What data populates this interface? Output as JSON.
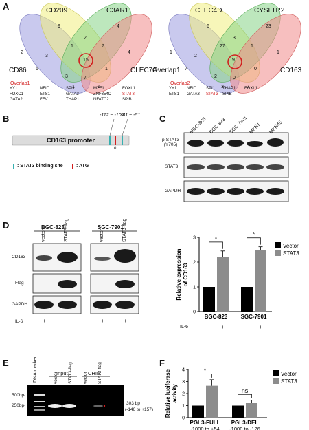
{
  "panels": {
    "A": {
      "label": "A",
      "venn1": {
        "sets": [
          "CD209",
          "C3AR1",
          "CD86",
          "CLEC7A"
        ],
        "counts": [
          "2",
          "9",
          "2",
          "4",
          "3",
          "1",
          "7",
          "4",
          "6",
          "15",
          "3",
          "1",
          "7",
          "1",
          "1"
        ],
        "overlap_title": "Overlap1",
        "gene_cols": [
          [
            "YY1",
            "FOXC1",
            "GATA2"
          ],
          [
            "NFIC",
            "ETS1",
            "FEV"
          ],
          [
            "SPI1",
            "GATA3",
            "THAP1"
          ],
          [
            "MZF1",
            "ZNF354C",
            "NFATC2"
          ],
          [
            "FOXL1",
            "STAT3",
            "SPIB"
          ]
        ],
        "highlight": "STAT3"
      },
      "venn2": {
        "sets": [
          "CLEC4D",
          "CYSLTR2",
          "Overlap1",
          "CD163"
        ],
        "counts": [
          "1",
          "6",
          "3",
          "23",
          "2",
          "27",
          "1",
          "1",
          "7",
          "9",
          "2",
          "0",
          "0",
          "3",
          "2"
        ],
        "overlap_title": "Overlap2",
        "gene_cols": [
          [
            "YY1",
            "ETS1"
          ],
          [
            "NFIC",
            "GATA3"
          ],
          [
            "SPI1",
            "STAT3"
          ],
          [
            "THAP1",
            "SPIB"
          ],
          [
            "FOXL1"
          ]
        ],
        "highlight": "STAT3"
      },
      "colors": {
        "c1": "#9c9ce0",
        "c2": "#f0ee80",
        "c3": "#86d486",
        "c4": "#f08a8a",
        "circle": "#d21e1e"
      }
    },
    "B": {
      "label": "B",
      "promoter": "CD163 promoter",
      "site1": "-112 ~ -102",
      "site2": "-41 ~ -51",
      "zero": "0",
      "legend_bind": ": STAT3 binding site",
      "legend_atg": ": ATG"
    },
    "C": {
      "label": "C",
      "lanes": [
        "MGC-803",
        "BGC-823",
        "SGC-7901",
        "MKN1",
        "MKN45"
      ],
      "rows": [
        "p-STAT3\n(Y705)",
        "STAT3",
        "GAPDH"
      ],
      "row1a": "p-STAT3",
      "row1b": "(Y705)",
      "row2": "STAT3",
      "row3": "GAPDH"
    },
    "D": {
      "label": "D",
      "groups": [
        "BGC-823",
        "SGC-7901"
      ],
      "lanes": [
        "vector",
        "STAT3-flag",
        "vector",
        "STAT3-flag"
      ],
      "blots": [
        "CD163",
        "Flag",
        "GAPDH"
      ],
      "il6_label": "IL-6",
      "plus": "+",
      "chart_il6": "IL-6"
    },
    "E": {
      "label": "E",
      "marker": "DNA marker",
      "input": "Input",
      "chip": "CHIP",
      "lanes": [
        "vector",
        "STAT3-flag",
        "vector",
        "STAT3-flag"
      ],
      "bp500": "500bp-",
      "bp250": "250bp-",
      "product": "303 bp",
      "range": "(-146 to +157)"
    },
    "F": {
      "label": "F"
    }
  },
  "chart_data": [
    {
      "type": "bar",
      "panel": "D",
      "ylabel": "Relative expression of CD163",
      "categories": [
        "BGC-823",
        "SGC-7901"
      ],
      "series": [
        {
          "name": "Vector",
          "values": [
            1.0,
            1.0
          ],
          "errors": [
            0,
            0
          ],
          "color": "#000000"
        },
        {
          "name": "STAT3",
          "values": [
            2.2,
            2.5
          ],
          "errors": [
            0.25,
            0.12
          ],
          "color": "#8c8c8c"
        }
      ],
      "ylim": [
        0,
        3
      ],
      "yticks": [
        "0",
        "1",
        "2",
        "3"
      ],
      "significance": [
        "*",
        "*"
      ],
      "il6": [
        "+",
        "+",
        "+",
        "+"
      ]
    },
    {
      "type": "bar",
      "panel": "F",
      "ylabel": "Relative luciferase activity",
      "categories": [
        "PGL3-FULL",
        "PGL3-DEL"
      ],
      "subcategories": [
        "-1000 to +54",
        "-1000 to -126"
      ],
      "series": [
        {
          "name": "Vector",
          "values": [
            1.0,
            1.0
          ],
          "errors": [
            0,
            0
          ],
          "color": "#000000"
        },
        {
          "name": "STAT3",
          "values": [
            2.65,
            1.2
          ],
          "errors": [
            0.5,
            0.25
          ],
          "color": "#8c8c8c"
        }
      ],
      "ylim": [
        0,
        4
      ],
      "yticks": [
        "0",
        "1",
        "2",
        "3",
        "4"
      ],
      "significance": [
        "*",
        "ns"
      ]
    }
  ]
}
